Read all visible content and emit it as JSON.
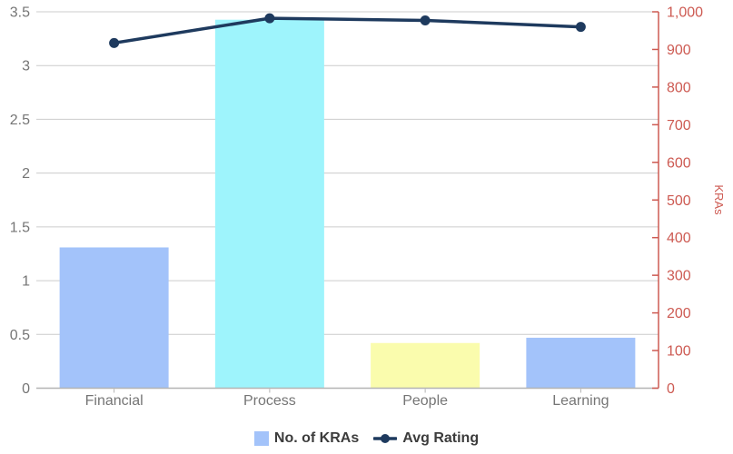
{
  "chart_data": {
    "type": "combo-bar-line",
    "title": "",
    "categories": [
      "Financial",
      "Process",
      "People",
      "Learning"
    ],
    "series": [
      {
        "name": "No. of KRAs",
        "type": "bar",
        "axis": "right",
        "values": [
          374,
          979,
          120,
          134
        ],
        "point_colors": [
          "#a3c3fa",
          "#9ef4fc",
          "#fafcad",
          "#a3c3fa"
        ],
        "color": "#a3c3fa"
      },
      {
        "name": "Avg Rating",
        "type": "line",
        "axis": "left",
        "values": [
          3.21,
          3.44,
          3.42,
          3.36
        ],
        "color": "#1e3a5e"
      }
    ],
    "left_axis": {
      "min": 0,
      "max": 3.5,
      "tick_step": 0.5,
      "tick_labels": [
        "0",
        "0.5",
        "1",
        "1.5",
        "2",
        "2.5",
        "3",
        "3.5"
      ],
      "label_color": "#757575"
    },
    "right_axis": {
      "min": 0,
      "max": 1000,
      "tick_step": 100,
      "title": "KRAs",
      "tick_labels": [
        "0",
        "100",
        "200",
        "300",
        "400",
        "500",
        "600",
        "700",
        "800",
        "900",
        "1,000"
      ],
      "color": "#cd5a52"
    },
    "grid": true,
    "grid_color": "#cccccc",
    "baseline_color": "#b3b3b3",
    "category_label_color": "#757575",
    "legend_position": "bottom",
    "legend_text_color": "#3c3c3c",
    "background": "#ffffff"
  }
}
